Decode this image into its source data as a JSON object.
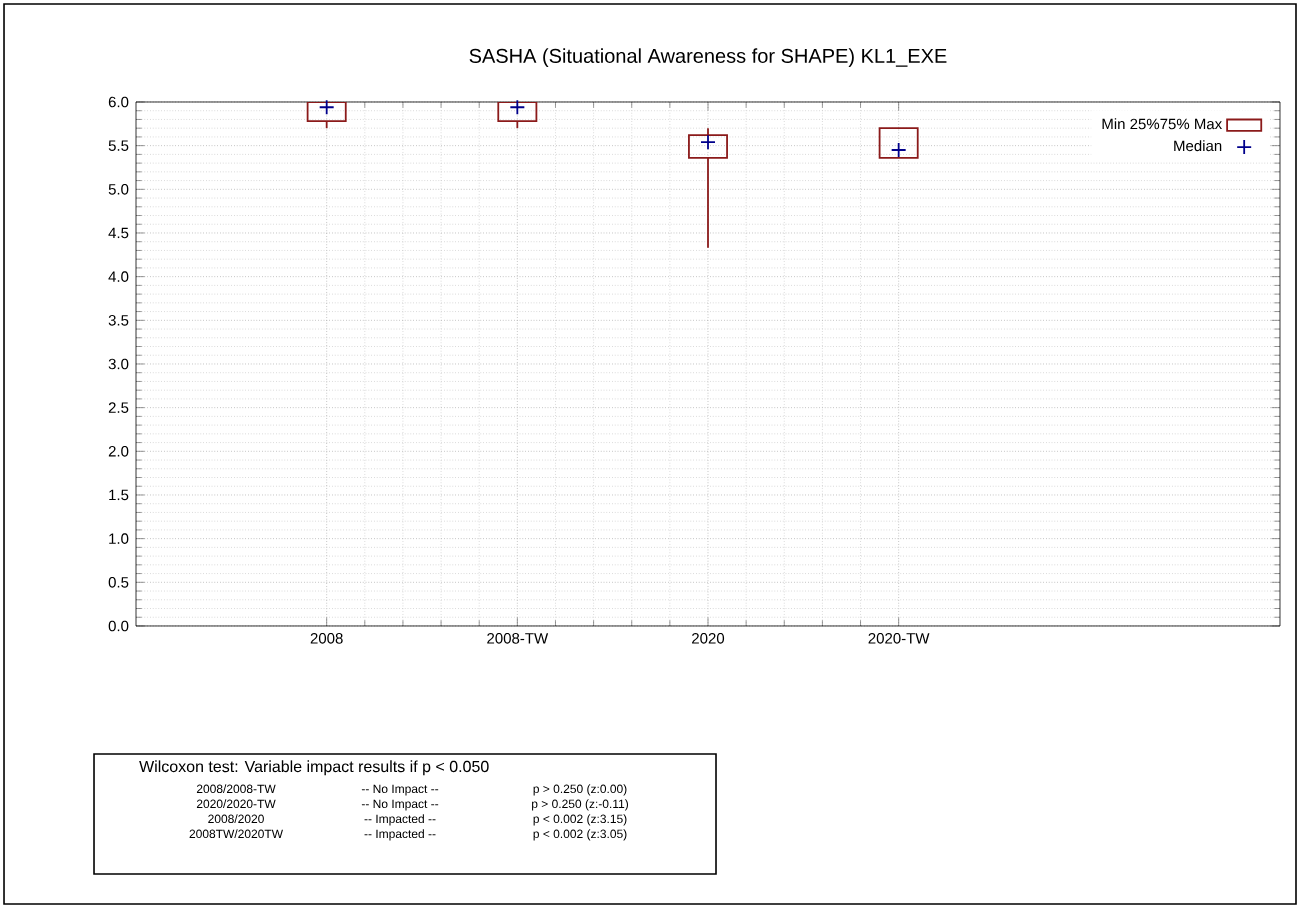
{
  "chart_data": {
    "type": "box",
    "title": "SASHA (Situational Awareness for SHAPE) KL1_EXE",
    "categories": [
      "2008",
      "2008-TW",
      "2020",
      "2020-TW"
    ],
    "series": [
      {
        "type": "box",
        "name": "Min 25%75% Max",
        "color": "#8b1a1a",
        "boxes": [
          {
            "low": 5.7,
            "q1": 5.78,
            "median": 5.94,
            "q3": 6.0,
            "high": 6.0
          },
          {
            "low": 5.7,
            "q1": 5.78,
            "median": 5.94,
            "q3": 6.0,
            "high": 6.0
          },
          {
            "low": 4.33,
            "q1": 5.36,
            "median": 5.54,
            "q3": 5.62,
            "high": 5.7
          },
          {
            "low": 5.36,
            "q1": 5.36,
            "median": 5.45,
            "q3": 5.7,
            "high": 5.7
          }
        ]
      }
    ],
    "ylim": [
      0,
      6
    ],
    "yticks": [
      {
        "value": 0,
        "label": "0.0"
      },
      {
        "value": 0.5,
        "label": "0.5"
      },
      {
        "value": 1,
        "label": "1.0"
      },
      {
        "value": 1.5,
        "label": "1.5"
      },
      {
        "value": 2,
        "label": "2.0"
      },
      {
        "value": 2.5,
        "label": "2.5"
      },
      {
        "value": 3,
        "label": "3.0"
      },
      {
        "value": 3.5,
        "label": "3.5"
      },
      {
        "value": 4,
        "label": "4.0"
      },
      {
        "value": 4.5,
        "label": "4.5"
      },
      {
        "value": 5,
        "label": "5.0"
      },
      {
        "value": 5.5,
        "label": "5.5"
      },
      {
        "value": 6,
        "label": "6.0"
      }
    ],
    "grid": true,
    "legend": "top right",
    "annotations": [
      "Wilcoxon test: Variable impact results if p < 0.050",
      "2008/2008-TW",
      "-- No Impact --",
      "p > 0.250 (z:0.00)",
      "2020/2020-TW",
      "-- No Impact --",
      "p > 0.250 (z:-0.11)",
      "2008/2020",
      "-- Impacted --",
      "p < 0.002  (z:3.15)",
      "2008TW/2020TW",
      "-- Impacted --",
      "p < 0.002  (z:3.05)",
      "Median"
    ]
  }
}
